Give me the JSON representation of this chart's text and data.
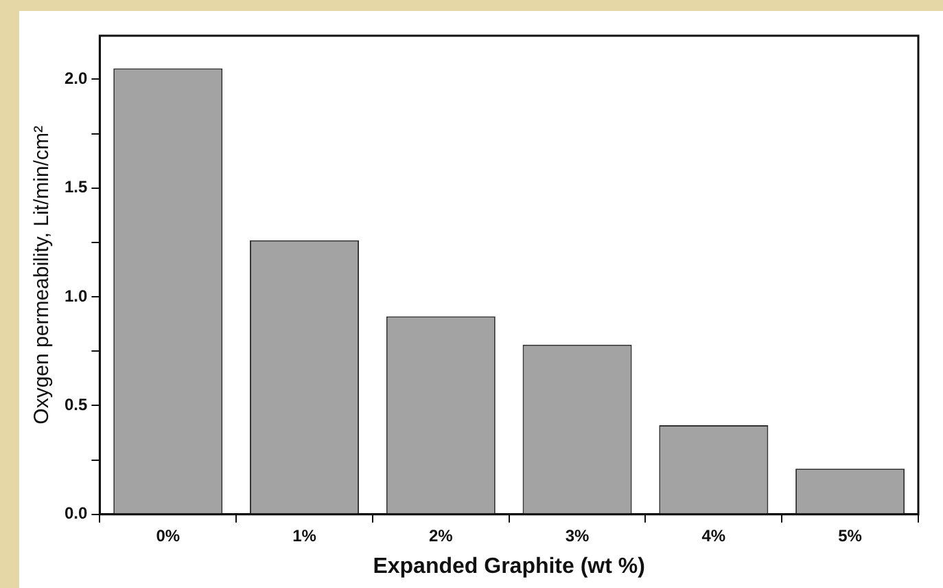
{
  "chart_data": {
    "type": "bar",
    "xlabel": "Expanded Graphite (wt %)",
    "ylabel": "Oxygen permeability, Lit/min/cm²",
    "categories": [
      "0%",
      "1%",
      "2%",
      "3%",
      "4%",
      "5%"
    ],
    "values": [
      2.05,
      1.26,
      0.91,
      0.78,
      0.41,
      0.21
    ],
    "color": "#a3a3a3",
    "ylim": [
      0,
      2.2
    ],
    "yticks": [
      {
        "value": 0,
        "label": "0.0"
      },
      {
        "value": 0.25,
        "label": null
      },
      {
        "value": 0.5,
        "label": "0.5"
      },
      {
        "value": 0.75,
        "label": null
      },
      {
        "value": 1,
        "label": "1.0"
      },
      {
        "value": 1.25,
        "label": null
      },
      {
        "value": 1.5,
        "label": "1.5"
      },
      {
        "value": 1.75,
        "label": null
      },
      {
        "value": 2,
        "label": "2.0"
      }
    ],
    "grid": false,
    "legend": false
  }
}
